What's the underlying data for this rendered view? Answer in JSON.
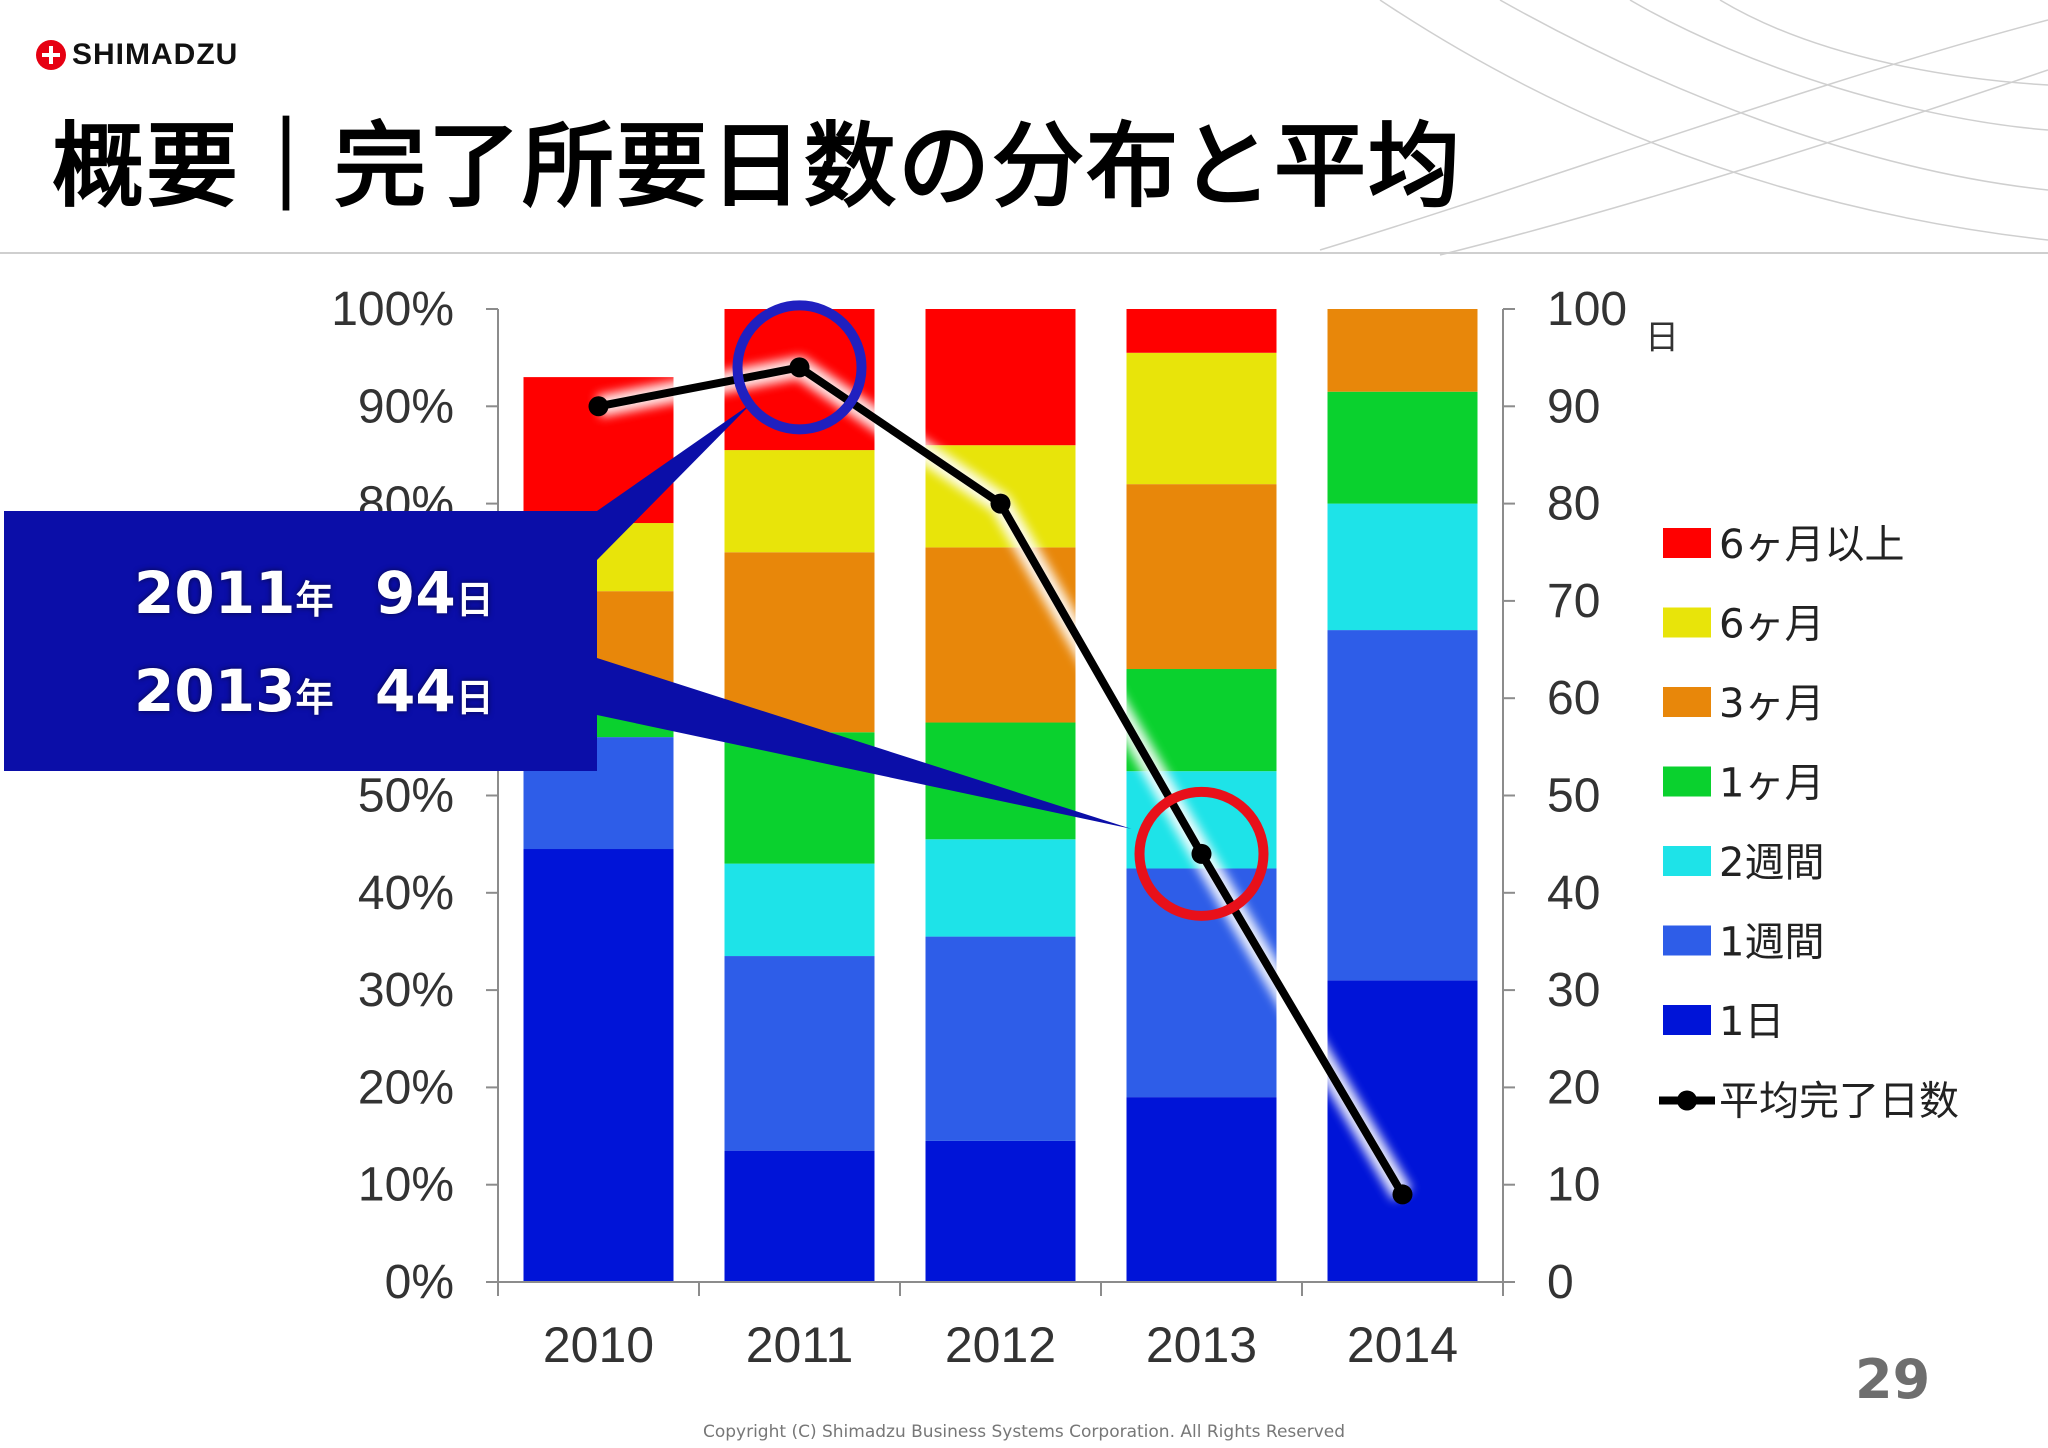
{
  "brand": {
    "logo_text": "SHIMADZU"
  },
  "slide": {
    "title": "概要｜完了所要日数の分布と平均",
    "page_number": "29",
    "copyright": "Copyright (C) Shimadzu Business Systems Corporation. All Rights Reserved"
  },
  "callout": {
    "lines": [
      {
        "year": "2011",
        "year_unit": "年",
        "days": "94",
        "days_unit": "日"
      },
      {
        "year": "2013",
        "year_unit": "年",
        "days": "44",
        "days_unit": "日"
      }
    ],
    "colors": {
      "box": "#0b0ea8",
      "circle_2011": "#2020c0",
      "circle_2013": "#e8101a"
    }
  },
  "chart_data": {
    "type": "bar",
    "subtype": "stacked-100-percent-with-line",
    "categories": [
      "2010",
      "2011",
      "2012",
      "2013",
      "2014"
    ],
    "left_axis": {
      "ticks": [
        "0%",
        "10%",
        "20%",
        "30%",
        "40%",
        "50%",
        "60%",
        "70%",
        "80%",
        "90%",
        "100%"
      ],
      "ylim": [
        0,
        100
      ]
    },
    "right_axis": {
      "ticks": [
        "0",
        "10",
        "20",
        "30",
        "40",
        "50",
        "60",
        "70",
        "80",
        "90",
        "100"
      ],
      "unit": "日",
      "ylim": [
        0,
        100
      ]
    },
    "series": [
      {
        "name": "1日",
        "color": "#0014d8",
        "values": [
          44.5,
          13.5,
          14.5,
          19,
          31
        ]
      },
      {
        "name": "1週間",
        "color": "#2e5de8",
        "values": [
          11.5,
          20,
          21,
          23.5,
          36
        ]
      },
      {
        "name": "2週間",
        "color": "#1ee3e8",
        "values": [
          0,
          9.5,
          10,
          10,
          13
        ]
      },
      {
        "name": "1ヶ月",
        "color": "#0ad12e",
        "values": [
          5.5,
          13.5,
          12,
          10.5,
          11.5
        ]
      },
      {
        "name": "3ヶ月",
        "color": "#e8870a",
        "values": [
          9.5,
          18.5,
          18,
          19,
          8.5
        ]
      },
      {
        "name": "6ヶ月",
        "color": "#e8e40a",
        "values": [
          7,
          10.5,
          10.5,
          13.5,
          0
        ]
      },
      {
        "name": "6ヶ月以上",
        "color": "#ff0000",
        "values": [
          15,
          14.5,
          14,
          4.5,
          0
        ]
      }
    ],
    "line": {
      "name": "平均完了日数",
      "color": "#000000",
      "values": [
        90,
        94,
        80,
        44,
        9
      ]
    },
    "legend": {
      "placement": "right"
    },
    "grid": false
  }
}
